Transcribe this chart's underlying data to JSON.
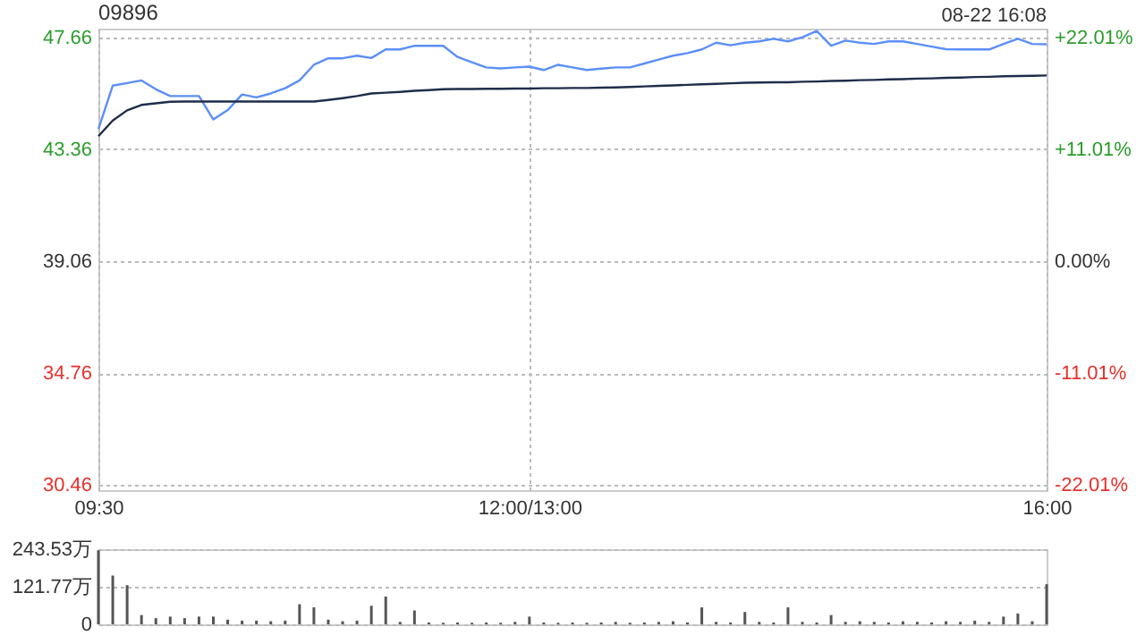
{
  "chart_data": [
    {
      "type": "line",
      "title": "09896",
      "annotations": [
        "08-22 16:08"
      ],
      "categories": [
        "09:30",
        null,
        null,
        null,
        null,
        null,
        null,
        null,
        null,
        null,
        null,
        null,
        null,
        null,
        null,
        null,
        null,
        null,
        null,
        null,
        null,
        null,
        null,
        null,
        null,
        null,
        null,
        null,
        null,
        null,
        "12:00/13:00",
        null,
        null,
        null,
        null,
        null,
        null,
        null,
        null,
        null,
        null,
        null,
        null,
        null,
        null,
        null,
        null,
        null,
        null,
        null,
        null,
        null,
        null,
        null,
        null,
        null,
        null,
        null,
        null,
        null,
        null,
        null,
        null,
        null,
        null,
        null,
        "16:00"
      ],
      "ylim": [
        30.26,
        47.99
      ],
      "yticks": [
        30.46,
        34.76,
        39.06,
        43.36,
        47.66
      ],
      "y2lim": [
        -22.53,
        22.86
      ],
      "y2ticks": [
        {
          "value": -22.01,
          "label": "-22.01%"
        },
        {
          "value": -11.01,
          "label": "-11.01%"
        },
        {
          "value": 0,
          "label": "0.00%"
        },
        {
          "value": 11.01,
          "label": "+11.01%"
        },
        {
          "value": 22.01,
          "label": "+22.01%"
        }
      ],
      "grid": true,
      "series": [
        {
          "type": "line",
          "color": "#5b8ff9",
          "values": [
            44.13,
            45.8,
            45.9,
            46.0,
            45.66,
            45.4,
            45.4,
            45.4,
            44.5,
            44.86,
            45.46,
            45.35,
            45.5,
            45.7,
            46.0,
            46.6,
            46.85,
            46.85,
            46.95,
            46.86,
            47.19,
            47.19,
            47.33,
            47.33,
            47.33,
            46.9,
            46.7,
            46.5,
            46.46,
            46.5,
            46.53,
            46.4,
            46.6,
            46.5,
            46.4,
            46.45,
            46.5,
            46.5,
            46.65,
            46.8,
            46.95,
            47.05,
            47.19,
            47.45,
            47.35,
            47.45,
            47.5,
            47.6,
            47.5,
            47.66,
            47.9,
            47.33,
            47.53,
            47.45,
            47.4,
            47.5,
            47.5,
            47.4,
            47.3,
            47.2,
            47.19,
            47.19,
            47.19,
            47.4,
            47.6,
            47.4,
            47.39
          ]
        },
        {
          "type": "line",
          "color": "#1f2d4a",
          "values": [
            43.86,
            44.46,
            44.85,
            45.06,
            45.12,
            45.18,
            45.19,
            45.19,
            45.19,
            45.19,
            45.19,
            45.19,
            45.19,
            45.19,
            45.19,
            45.19,
            45.25,
            45.32,
            45.4,
            45.5,
            45.53,
            45.56,
            45.6,
            45.63,
            45.66,
            45.67,
            45.67,
            45.68,
            45.68,
            45.69,
            45.69,
            45.7,
            45.7,
            45.71,
            45.71,
            45.72,
            45.73,
            45.75,
            45.77,
            45.79,
            45.81,
            45.83,
            45.85,
            45.87,
            45.89,
            45.91,
            45.92,
            45.93,
            45.93,
            45.95,
            45.96,
            45.98,
            45.99,
            46.01,
            46.02,
            46.04,
            46.05,
            46.07,
            46.08,
            46.1,
            46.11,
            46.13,
            46.14,
            46.16,
            46.17,
            46.18,
            46.19
          ]
        }
      ]
    },
    {
      "type": "bar",
      "tick_labels": "y",
      "grid": true,
      "categories": [
        null,
        null,
        null,
        null,
        null,
        null,
        null,
        null,
        null,
        null,
        null,
        null,
        null,
        null,
        null,
        null,
        null,
        null,
        null,
        null,
        null,
        null,
        null,
        null,
        null,
        null,
        null,
        null,
        null,
        null,
        null,
        null,
        null,
        null,
        null,
        null,
        null,
        null,
        null,
        null,
        null,
        null,
        null,
        null,
        null,
        null,
        null,
        null,
        null,
        null,
        null,
        null,
        null,
        null,
        null,
        null,
        null,
        null,
        null,
        null,
        null,
        null,
        null,
        null,
        null,
        null,
        null
      ],
      "ylim": [
        0,
        243.53
      ],
      "yticks": [
        {
          "value": 0,
          "label": "0"
        },
        {
          "value": 121.77,
          "label": "121.77万"
        },
        {
          "value": 243.53,
          "label": "243.53万"
        }
      ],
      "series": [
        {
          "color": "#555555",
          "values": [
            240,
            158,
            127,
            30,
            20,
            25,
            20,
            25,
            25,
            15,
            12,
            12,
            10,
            12,
            65,
            55,
            15,
            10,
            12,
            60,
            90,
            8,
            45,
            6,
            5,
            6,
            5,
            6,
            5,
            8,
            25,
            6,
            5,
            6,
            5,
            6,
            8,
            5,
            6,
            8,
            10,
            6,
            55,
            8,
            6,
            40,
            8,
            6,
            55,
            8,
            6,
            30,
            8,
            10,
            8,
            6,
            10,
            8,
            6,
            10,
            8,
            12,
            8,
            25,
            35,
            10,
            130
          ]
        }
      ]
    }
  ]
}
